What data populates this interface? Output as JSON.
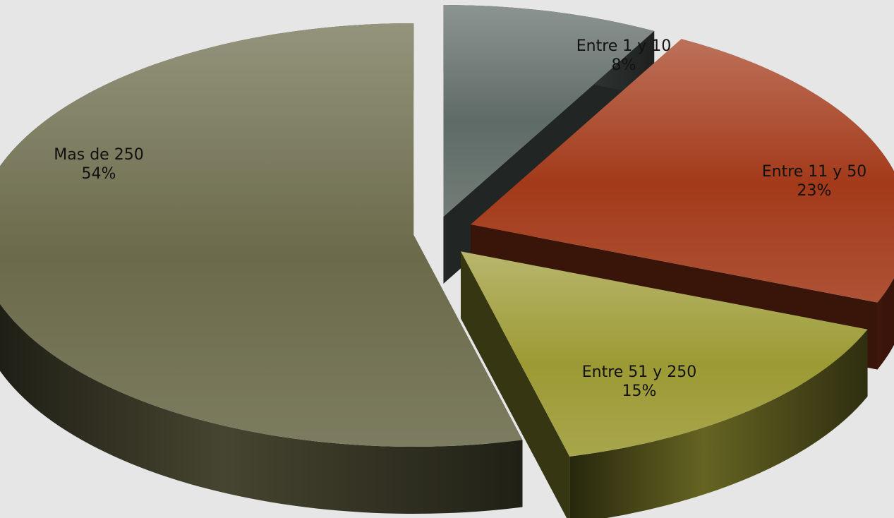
{
  "chart_data": {
    "type": "pie",
    "style": "3d-exploded",
    "slices": [
      {
        "label": "Entre 1 y 10",
        "percent_label": "8%",
        "value": 8,
        "color": "#5f6b66"
      },
      {
        "label": "Entre 11 y 50",
        "percent_label": "23%",
        "value": 23,
        "color": "#a33a1a"
      },
      {
        "label": "Entre 51 y 250",
        "percent_label": "15%",
        "value": 15,
        "color": "#9c9a34"
      },
      {
        "label": "Mas de 250",
        "percent_label": "54%",
        "value": 54,
        "color": "#6b6a4a"
      }
    ],
    "background": "#e6e6e6",
    "legend": "none"
  }
}
